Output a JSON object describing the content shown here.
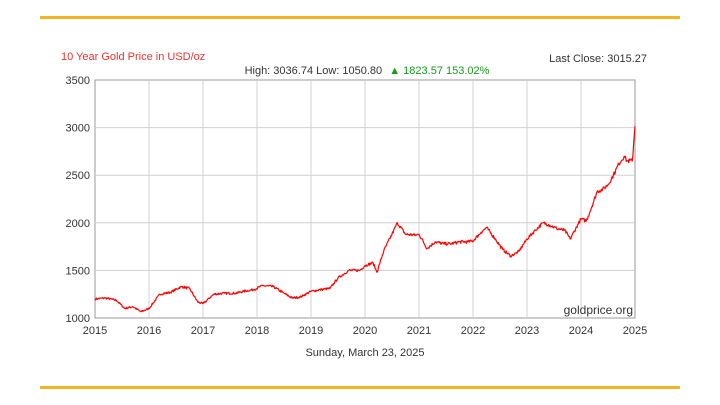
{
  "header": {
    "title": "10 Year Gold Price in USD/oz",
    "last_close": "Last Close: 3015.27",
    "stats_high_low": "High: 3036.74 Low: 1050.80",
    "stats_change": "▲ 1823.57 153.02%"
  },
  "footer": {
    "date": "Sunday, March 23, 2025"
  },
  "watermark": "goldprice.org",
  "colors": {
    "line": "#ff0000",
    "title": "#e8322b",
    "change": "#1a9a1a",
    "rule": "#f2b520",
    "grid": "#cccccc"
  },
  "chart_data": {
    "type": "line",
    "title": "10 Year Gold Price in USD/oz",
    "xlabel": "",
    "ylabel": "",
    "xlim": [
      2015,
      2025
    ],
    "ylim": [
      1000,
      3500
    ],
    "x_ticks": [
      "2015",
      "2016",
      "2017",
      "2018",
      "2019",
      "2020",
      "2021",
      "2022",
      "2023",
      "2024",
      "2025"
    ],
    "y_ticks": [
      "1000",
      "1500",
      "2000",
      "2500",
      "3000",
      "3500"
    ],
    "grid": true,
    "x": [
      2015.0,
      2015.2,
      2015.4,
      2015.55,
      2015.7,
      2015.85,
      2016.0,
      2016.2,
      2016.4,
      2016.6,
      2016.75,
      2016.9,
      2017.0,
      2017.2,
      2017.4,
      2017.6,
      2017.75,
      2017.95,
      2018.1,
      2018.3,
      2018.5,
      2018.65,
      2018.8,
      2019.0,
      2019.2,
      2019.35,
      2019.5,
      2019.7,
      2019.9,
      2020.0,
      2020.15,
      2020.22,
      2020.35,
      2020.5,
      2020.6,
      2020.75,
      2020.95,
      2021.0,
      2021.15,
      2021.3,
      2021.45,
      2021.6,
      2021.75,
      2021.9,
      2022.0,
      2022.15,
      2022.25,
      2022.4,
      2022.55,
      2022.7,
      2022.85,
      2023.0,
      2023.15,
      2023.3,
      2023.4,
      2023.55,
      2023.7,
      2023.8,
      2023.95,
      2024.0,
      2024.1,
      2024.2,
      2024.3,
      2024.4,
      2024.5,
      2024.6,
      2024.7,
      2024.8,
      2024.85,
      2024.95,
      2025.0
    ],
    "y": [
      1200,
      1210,
      1185,
      1100,
      1120,
      1065,
      1100,
      1250,
      1270,
      1330,
      1310,
      1170,
      1150,
      1250,
      1260,
      1260,
      1280,
      1300,
      1340,
      1330,
      1260,
      1210,
      1220,
      1280,
      1300,
      1310,
      1420,
      1500,
      1500,
      1550,
      1580,
      1480,
      1710,
      1880,
      2000,
      1880,
      1870,
      1880,
      1730,
      1800,
      1780,
      1780,
      1800,
      1800,
      1810,
      1900,
      1950,
      1840,
      1720,
      1650,
      1700,
      1830,
      1920,
      2000,
      1980,
      1940,
      1920,
      1830,
      1990,
      2040,
      2020,
      2170,
      2330,
      2350,
      2400,
      2500,
      2620,
      2700,
      2650,
      2650,
      3015
    ]
  }
}
